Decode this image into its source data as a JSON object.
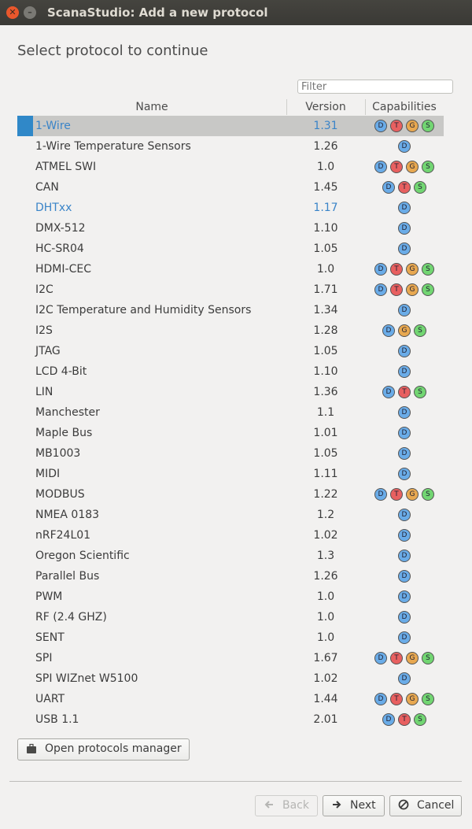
{
  "window": {
    "title": "ScanaStudio: Add a new protocol"
  },
  "heading": "Select protocol to continue",
  "filter": {
    "placeholder": "Filter"
  },
  "columns": {
    "name": "Name",
    "version": "Version",
    "capabilities": "Capabilities"
  },
  "colors": {
    "accent": "#3088c8",
    "link": "#3a84c8",
    "cap_D": "#6aace8",
    "cap_T": "#e86060",
    "cap_G": "#e8a850",
    "cap_S": "#72d672"
  },
  "protocols": [
    {
      "name": "1-Wire",
      "version": "1.31",
      "caps": [
        "D",
        "T",
        "G",
        "S"
      ],
      "selected": true,
      "link": true
    },
    {
      "name": "1-Wire Temperature Sensors",
      "version": "1.26",
      "caps": [
        "D"
      ]
    },
    {
      "name": "ATMEL SWI",
      "version": "1.0",
      "caps": [
        "D",
        "T",
        "G",
        "S"
      ]
    },
    {
      "name": "CAN",
      "version": "1.45",
      "caps": [
        "D",
        "T",
        "S"
      ]
    },
    {
      "name": "DHTxx",
      "version": "1.17",
      "caps": [
        "D"
      ],
      "link": true
    },
    {
      "name": "DMX-512",
      "version": "1.10",
      "caps": [
        "D"
      ]
    },
    {
      "name": "HC-SR04",
      "version": "1.05",
      "caps": [
        "D"
      ]
    },
    {
      "name": "HDMI-CEC",
      "version": "1.0",
      "caps": [
        "D",
        "T",
        "G",
        "S"
      ]
    },
    {
      "name": "I2C",
      "version": "1.71",
      "caps": [
        "D",
        "T",
        "G",
        "S"
      ]
    },
    {
      "name": "I2C Temperature and Humidity Sensors",
      "version": "1.34",
      "caps": [
        "D"
      ]
    },
    {
      "name": "I2S",
      "version": "1.28",
      "caps": [
        "D",
        "G",
        "S"
      ]
    },
    {
      "name": "JTAG",
      "version": "1.05",
      "caps": [
        "D"
      ]
    },
    {
      "name": "LCD 4-Bit",
      "version": "1.10",
      "caps": [
        "D"
      ]
    },
    {
      "name": "LIN",
      "version": "1.36",
      "caps": [
        "D",
        "T",
        "S"
      ]
    },
    {
      "name": "Manchester",
      "version": "1.1",
      "caps": [
        "D"
      ]
    },
    {
      "name": "Maple Bus",
      "version": "1.01",
      "caps": [
        "D"
      ]
    },
    {
      "name": "MB1003",
      "version": "1.05",
      "caps": [
        "D"
      ]
    },
    {
      "name": "MIDI",
      "version": "1.11",
      "caps": [
        "D"
      ]
    },
    {
      "name": "MODBUS",
      "version": "1.22",
      "caps": [
        "D",
        "T",
        "G",
        "S"
      ]
    },
    {
      "name": "NMEA 0183",
      "version": "1.2",
      "caps": [
        "D"
      ]
    },
    {
      "name": "nRF24L01",
      "version": "1.02",
      "caps": [
        "D"
      ]
    },
    {
      "name": "Oregon Scientific",
      "version": "1.3",
      "caps": [
        "D"
      ]
    },
    {
      "name": "Parallel Bus",
      "version": "1.26",
      "caps": [
        "D"
      ]
    },
    {
      "name": "PWM",
      "version": "1.0",
      "caps": [
        "D"
      ]
    },
    {
      "name": "RF (2.4 GHZ)",
      "version": "1.0",
      "caps": [
        "D"
      ]
    },
    {
      "name": "SENT",
      "version": "1.0",
      "caps": [
        "D"
      ]
    },
    {
      "name": "SPI",
      "version": "1.67",
      "caps": [
        "D",
        "T",
        "G",
        "S"
      ]
    },
    {
      "name": "SPI WIZnet W5100",
      "version": "1.02",
      "caps": [
        "D"
      ]
    },
    {
      "name": "UART",
      "version": "1.44",
      "caps": [
        "D",
        "T",
        "G",
        "S"
      ]
    },
    {
      "name": "USB 1.1",
      "version": "2.01",
      "caps": [
        "D",
        "T",
        "S"
      ]
    }
  ],
  "buttons": {
    "manager": {
      "label": "Open protocols manager",
      "icon": "briefcase-icon"
    },
    "back": {
      "label": "Back",
      "icon": "arrow-left-icon",
      "enabled": false
    },
    "next": {
      "label": "Next",
      "icon": "arrow-right-icon"
    },
    "cancel": {
      "label": "Cancel",
      "icon": "cancel-icon"
    }
  }
}
